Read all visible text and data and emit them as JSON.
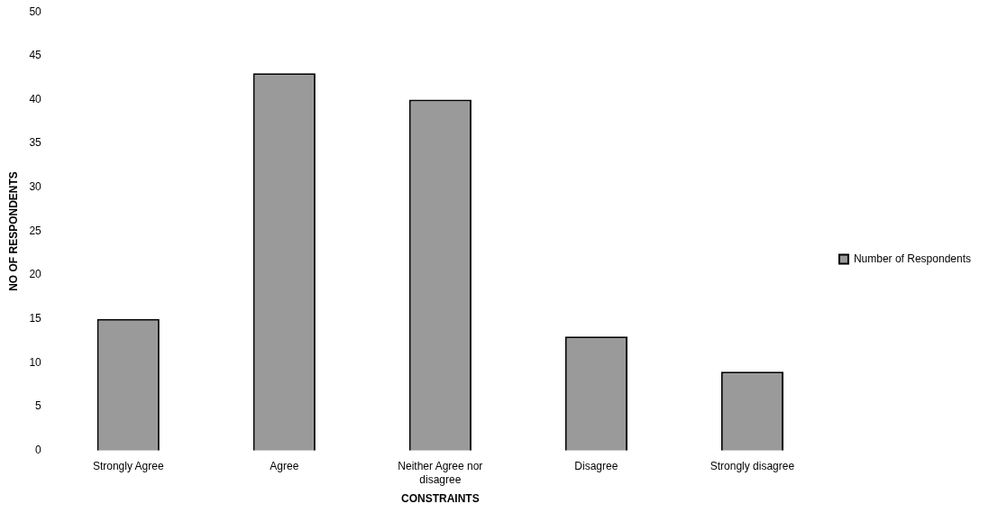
{
  "chart_data": {
    "type": "bar",
    "xlabel": "CONSTRAINTS",
    "ylabel": "NO OF RESPONDENTS",
    "categories": [
      "Strongly Agree",
      "Agree",
      "Neither Agree nor disagree",
      "Disagree",
      "Strongly disagree"
    ],
    "series": [
      {
        "name": "Number of Respondents",
        "color": "#9a9a9a",
        "values": [
          15,
          43,
          40,
          13,
          9
        ]
      }
    ],
    "ylim": [
      0,
      50
    ],
    "yticks": [
      0,
      5,
      10,
      15,
      20,
      25,
      30,
      35,
      40,
      45,
      50
    ],
    "grid": false,
    "legend": "right"
  }
}
